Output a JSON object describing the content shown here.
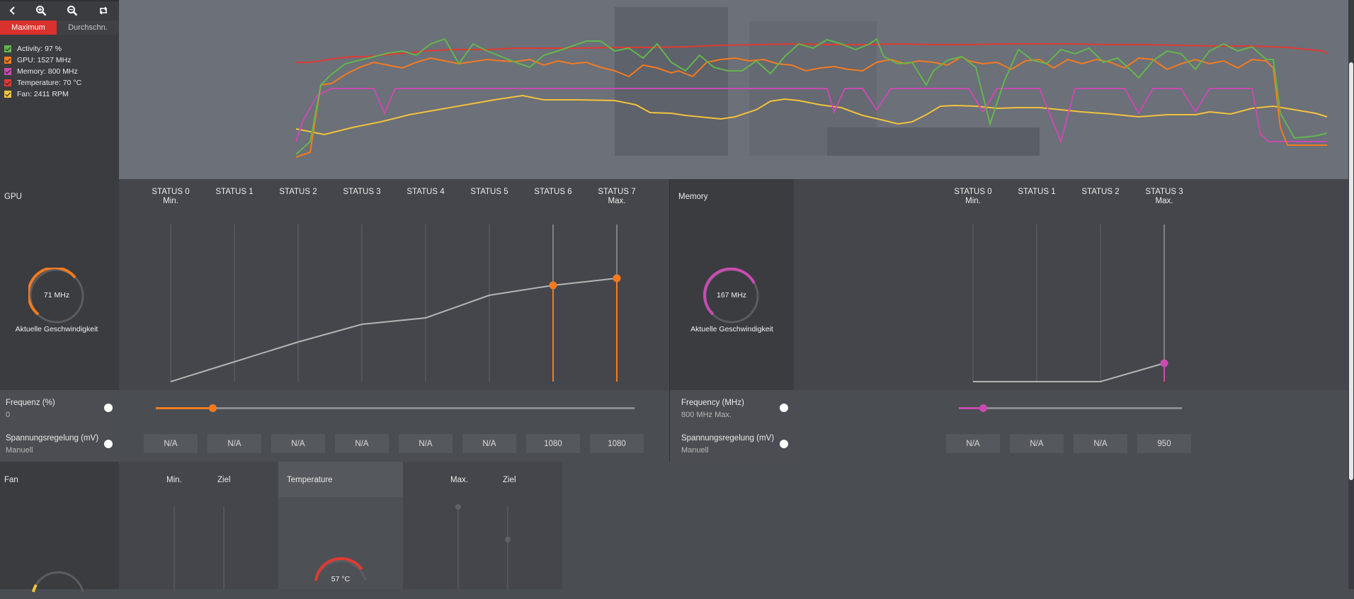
{
  "toolbar": {
    "icons": [
      "back-icon",
      "zoom-in-icon",
      "zoom-out-icon",
      "reset-zoom-icon"
    ]
  },
  "tabs": {
    "maximum": "Maximum",
    "average": "Durchschn."
  },
  "legend": [
    {
      "label": "Activity: 97 %",
      "color": "#63b64d"
    },
    {
      "label": "GPU: 1527 MHz",
      "color": "#f47a20"
    },
    {
      "label": "Memory: 800 MHz",
      "color": "#c94bb0"
    },
    {
      "label": "Temperature: 70 °C",
      "color": "#e03a33"
    },
    {
      "label": "Fan: 2411 RPM",
      "color": "#f2c23c"
    }
  ],
  "gpu": {
    "title": "GPU",
    "states": [
      {
        "name": "STATUS 0",
        "sub": "Min."
      },
      {
        "name": "STATUS 1",
        "sub": ""
      },
      {
        "name": "STATUS 2",
        "sub": ""
      },
      {
        "name": "STATUS 3",
        "sub": ""
      },
      {
        "name": "STATUS 4",
        "sub": ""
      },
      {
        "name": "STATUS 5",
        "sub": ""
      },
      {
        "name": "STATUS 6",
        "sub": ""
      },
      {
        "name": "STATUS 7",
        "sub": "Max."
      }
    ],
    "gauge_value": "71 MHz",
    "gauge_fraction": 0.62,
    "gauge_caption": "Aktuelle Geschwindigkeit",
    "accent": "#f47a20",
    "freq_label": "Frequenz (%)",
    "freq_value": "0",
    "slider_fraction": 0.12,
    "volt_label": "Spannungsregelung (mV)",
    "volt_mode": "Manuell",
    "volts": [
      "N/A",
      "N/A",
      "N/A",
      "N/A",
      "N/A",
      "N/A",
      "1080",
      "1080"
    ]
  },
  "memory": {
    "title": "Memory",
    "states": [
      {
        "name": "STATUS 0",
        "sub": "Min."
      },
      {
        "name": "STATUS 1",
        "sub": ""
      },
      {
        "name": "STATUS 2",
        "sub": ""
      },
      {
        "name": "STATUS 3",
        "sub": "Max."
      }
    ],
    "gauge_value": "167 MHz",
    "gauge_fraction": 0.7,
    "gauge_caption": "Aktuelle Geschwindigkeit",
    "accent": "#c94bb0",
    "freq_label": "Frequency (MHz)",
    "freq_value": "800 MHz Max.",
    "slider_fraction": 0.11,
    "volt_label": "Spannungsregelung (mV)",
    "volt_mode": "Manuell",
    "volts": [
      "N/A",
      "N/A",
      "N/A",
      "950"
    ]
  },
  "fan": {
    "title": "Fan",
    "col_min": "Min.",
    "col_target": "Ziel"
  },
  "temperature": {
    "title": "Temperature",
    "col_max": "Max.",
    "col_target": "Ziel",
    "gauge_value": "57 °C",
    "accent": "#e03a33"
  }
}
